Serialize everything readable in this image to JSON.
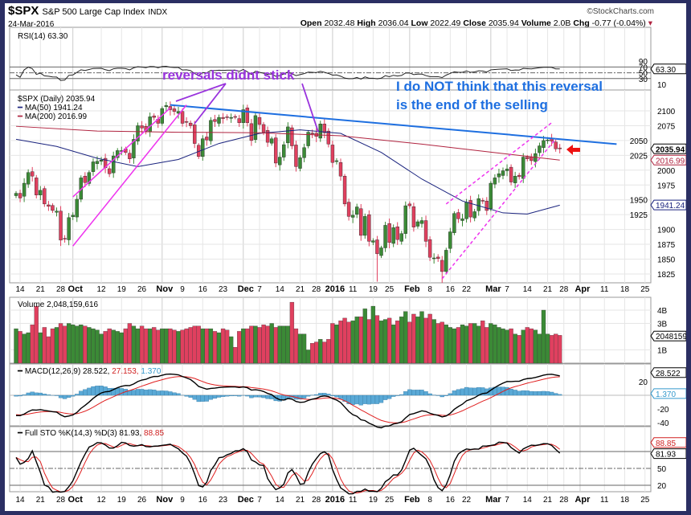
{
  "header": {
    "symbol": "$SPX",
    "name": "S&P 500 Large Cap Index",
    "exchange": "INDX",
    "date": "24-Mar-2016",
    "brand": "©StockCharts.com",
    "open_label": "Open",
    "open": "2032.48",
    "high_label": "High",
    "high": "2036.04",
    "low_label": "Low",
    "low": "2022.49",
    "close_label": "Close",
    "close": "2035.94",
    "volume_label": "Volume",
    "volume": "2.0B",
    "chg_label": "Chg",
    "chg": "-0.77 (-0.04%)"
  },
  "annotations": {
    "reversals": "reversals  didnt stick",
    "note_line1": "I do NOT think that this reversal",
    "note_line2": "is the end of the selling"
  },
  "colors": {
    "up": "#3b8a36",
    "down": "#e0405f",
    "trend": "#1e6fe0",
    "magenta": "#ee33ee",
    "purple": "#9933dd",
    "ma50": "#1a237e",
    "ma200": "#b0233f",
    "frame": "#2b2f63"
  },
  "chart_data": [
    {
      "type": "candlestick",
      "title": "$SPX (Daily) 2035.94",
      "legend": [
        "MA(50) 1941.24",
        "MA(200) 2016.99"
      ],
      "y_ticks": [
        1825,
        1850,
        1875,
        1900,
        1925,
        1950,
        1975,
        2000,
        2025,
        2050,
        2075,
        2100
      ],
      "ylim": [
        1805,
        2130
      ],
      "last_value_tags": [
        "2035.94",
        "2016.99",
        "1941.24"
      ],
      "x_tick_labels": [
        {
          "i": 1,
          "t": "14"
        },
        {
          "i": 6,
          "t": "21"
        },
        {
          "i": 11,
          "t": "28"
        },
        {
          "i": 14,
          "t": "Oct",
          "bold": true
        },
        {
          "i": 21,
          "t": "12"
        },
        {
          "i": 26,
          "t": "19"
        },
        {
          "i": 31,
          "t": "26"
        },
        {
          "i": 36,
          "t": "Nov",
          "bold": true
        },
        {
          "i": 41,
          "t": "9"
        },
        {
          "i": 46,
          "t": "16"
        },
        {
          "i": 51,
          "t": "23"
        },
        {
          "i": 56,
          "t": "Dec",
          "bold": true
        },
        {
          "i": 60,
          "t": "7"
        },
        {
          "i": 65,
          "t": "14"
        },
        {
          "i": 70,
          "t": "21"
        },
        {
          "i": 74,
          "t": "28"
        },
        {
          "i": 78,
          "t": "2016",
          "bold": true
        },
        {
          "i": 83,
          "t": "11"
        },
        {
          "i": 88,
          "t": "19"
        },
        {
          "i": 92,
          "t": "25"
        },
        {
          "i": 97,
          "t": "Feb",
          "bold": true
        },
        {
          "i": 102,
          "t": "8"
        },
        {
          "i": 107,
          "t": "16"
        },
        {
          "i": 111,
          "t": "22"
        },
        {
          "i": 117,
          "t": "Mar",
          "bold": true
        },
        {
          "i": 121,
          "t": "7"
        },
        {
          "i": 126,
          "t": "14"
        },
        {
          "i": 131,
          "t": "21"
        },
        {
          "i": 135,
          "t": "28"
        },
        {
          "i": 139,
          "t": "Apr",
          "bold": true
        },
        {
          "i": 145,
          "t": "11"
        },
        {
          "i": 150,
          "t": "18"
        },
        {
          "i": 155,
          "t": "25"
        }
      ],
      "start_date": "2015-09-11",
      "closes": [
        1961,
        1953,
        1978,
        1996,
        1990,
        1958,
        1966,
        1943,
        1939,
        1932,
        1931,
        1882,
        1884,
        1920,
        1924,
        1951,
        1987,
        1979,
        1996,
        2014,
        2015,
        2017,
        2004,
        1994,
        2024,
        2033,
        2033,
        2030,
        2019,
        2052,
        2075,
        2071,
        2066,
        2090,
        2089,
        2079,
        2104,
        2109,
        2102,
        2099,
        2099,
        2079,
        2081,
        2075,
        2045,
        2023,
        2053,
        2051,
        2084,
        2082,
        2089,
        2087,
        2089,
        2089,
        2090,
        2080,
        2102,
        2080,
        2050,
        2092,
        2077,
        2064,
        2047,
        2053,
        2012,
        2022,
        2043,
        2073,
        2041,
        2006,
        2021,
        2038,
        2064,
        2061,
        2057,
        2078,
        2063,
        2044,
        2013,
        2016,
        1990,
        1943,
        1922,
        1924,
        1938,
        1890,
        1922,
        1880,
        1881,
        1859,
        1869,
        1907,
        1878,
        1903,
        1883,
        1893,
        1940,
        1940,
        1904,
        1913,
        1915,
        1880,
        1853,
        1852,
        1851,
        1829,
        1865,
        1896,
        1927,
        1918,
        1918,
        1946,
        1921,
        1930,
        1952,
        1948,
        1932,
        1978,
        1987,
        1994,
        1999,
        2002,
        1980,
        1990,
        1989,
        2022,
        2019,
        2016,
        2028,
        2041,
        2050,
        2051,
        2049,
        2036,
        2036
      ],
      "ma50": [
        [
          0,
          2052
        ],
        [
          10,
          2040
        ],
        [
          20,
          2020
        ],
        [
          30,
          2006
        ],
        [
          40,
          2018
        ],
        [
          50,
          2045
        ],
        [
          60,
          2062
        ],
        [
          70,
          2068
        ],
        [
          80,
          2062
        ],
        [
          90,
          2030
        ],
        [
          100,
          1985
        ],
        [
          110,
          1948
        ],
        [
          120,
          1928
        ],
        [
          126,
          1926
        ],
        [
          134,
          1941
        ]
      ],
      "ma200": [
        [
          0,
          2074
        ],
        [
          20,
          2066
        ],
        [
          40,
          2064
        ],
        [
          60,
          2063
        ],
        [
          80,
          2058
        ],
        [
          100,
          2044
        ],
        [
          120,
          2028
        ],
        [
          134,
          2017
        ]
      ],
      "trendlines": [
        {
          "name": "blue-resistance",
          "from": [
            38,
            2110
          ],
          "to": [
            148,
            2044
          ],
          "style": "solid"
        },
        {
          "name": "magenta-upper",
          "from": [
            14,
            1955
          ],
          "to": [
            38,
            2105
          ],
          "style": "solid"
        },
        {
          "name": "magenta-lower",
          "from": [
            14,
            1872
          ],
          "to": [
            42,
            2110
          ],
          "style": "solid"
        },
        {
          "name": "magenta-dash-upper",
          "from": [
            106,
            1943
          ],
          "to": [
            132,
            2080
          ],
          "style": "dashed"
        },
        {
          "name": "magenta-dash-lower",
          "from": [
            105,
            1817
          ],
          "to": [
            133,
            2053
          ],
          "style": "dashed"
        }
      ]
    },
    {
      "type": "line",
      "title": "RSI(14) 63.30",
      "y_ticks": [
        10,
        30,
        50,
        70,
        90
      ],
      "ylim": [
        0,
        100
      ],
      "last_value_tag": "63.30"
    },
    {
      "type": "bar",
      "title": "Volume 2,048,159,616",
      "y_tick_labels": [
        {
          "v": 1,
          "t": "1B"
        },
        {
          "v": 3,
          "t": "3B"
        },
        {
          "v": 4,
          "t": "4B"
        }
      ],
      "ylim": [
        0,
        4.8
      ],
      "last_value_tag": "2048159",
      "values_billions": [
        2.6,
        2.4,
        2.2,
        2.3,
        2.9,
        4.3,
        2.3,
        2.7,
        2.0,
        2.6,
        2.7,
        3.0,
        2.8,
        3.0,
        2.9,
        2.8,
        2.9,
        2.8,
        2.7,
        2.6,
        2.5,
        2.2,
        2.4,
        2.6,
        2.5,
        2.4,
        2.3,
        2.6,
        3.0,
        2.8,
        2.6,
        2.8,
        2.6,
        2.6,
        2.7,
        2.5,
        2.6,
        2.6,
        2.6,
        2.5,
        2.4,
        2.5,
        2.6,
        2.7,
        2.8,
        2.8,
        2.6,
        2.6,
        2.6,
        2.4,
        2.3,
        2.6,
        2.5,
        2.0,
        1.2,
        2.4,
        2.6,
        2.6,
        2.8,
        2.8,
        2.7,
        2.9,
        2.8,
        3.0,
        2.7,
        2.8,
        2.8,
        2.8,
        4.6,
        2.6,
        2.2,
        2.2,
        1.0,
        1.5,
        1.6,
        1.8,
        1.6,
        1.8,
        3.0,
        2.9,
        3.2,
        3.4,
        3.1,
        3.2,
        3.5,
        3.5,
        4.1,
        3.3,
        4.3,
        3.6,
        3.2,
        3.3,
        3.4,
        2.9,
        3.2,
        3.5,
        3.9,
        3.1,
        3.7,
        3.5,
        3.9,
        3.4,
        3.7,
        3.3,
        3.0,
        3.1,
        2.9,
        2.7,
        2.6,
        2.7,
        2.9,
        2.8,
        3.0,
        3.0,
        2.8,
        3.2,
        2.7,
        3.0,
        2.9,
        2.7,
        2.6,
        2.5,
        2.6,
        2.2,
        2.1,
        2.5,
        2.7,
        2.6,
        2.5,
        2.2,
        4.0,
        2.2,
        2.1,
        2.2,
        2.1
      ]
    },
    {
      "type": "line",
      "title_prefix": "MACD(12,26,9) 28.522,",
      "signal": "27.153,",
      "hist": "1.370",
      "y_ticks": [
        -40,
        -20,
        20
      ],
      "ylim": [
        -50,
        40
      ],
      "last_value_tags": [
        "28.522",
        "1.370"
      ]
    },
    {
      "type": "line",
      "title_prefix": "Full STO %K(14,3) %D(3) 81.93,",
      "d_value": "88.85",
      "y_ticks": [
        20,
        50,
        80
      ],
      "ylim": [
        0,
        100
      ],
      "last_value_tags": [
        "88.85",
        "81.93"
      ]
    }
  ]
}
